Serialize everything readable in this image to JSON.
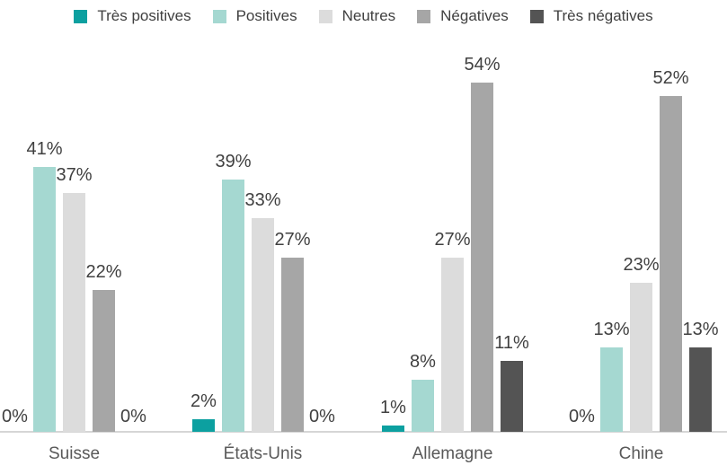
{
  "chart_data": {
    "type": "bar",
    "title": "",
    "xlabel": "",
    "ylabel": "",
    "categories": [
      "Suisse",
      "États-Unis",
      "Allemagne",
      "Chine"
    ],
    "series": [
      {
        "name": "Très positives",
        "color": "#0ca0a0",
        "values": [
          0,
          2,
          1,
          0
        ],
        "labels": [
          "0%",
          "2%",
          "1%",
          "0%"
        ]
      },
      {
        "name": "Positives",
        "color": "#a5d8d1",
        "values": [
          41,
          39,
          8,
          13
        ],
        "labels": [
          "41%",
          "39%",
          "8%",
          "13%"
        ]
      },
      {
        "name": "Neutres",
        "color": "#dcdcdc",
        "values": [
          37,
          33,
          27,
          23
        ],
        "labels": [
          "37%",
          "33%",
          "27%",
          "23%"
        ]
      },
      {
        "name": "Négatives",
        "color": "#a6a6a6",
        "values": [
          22,
          27,
          54,
          52
        ],
        "labels": [
          "22%",
          "27%",
          "54%",
          "52%"
        ]
      },
      {
        "name": "Très négatives",
        "color": "#545454",
        "values": [
          0,
          0,
          11,
          13
        ],
        "labels": [
          "0%",
          "0%",
          "11%",
          "13%"
        ]
      }
    ],
    "value_suffix": "%",
    "ylim": [
      0,
      60
    ],
    "grid": false,
    "legend_position": "top",
    "value_label_color": "#404040",
    "category_label_color": "#595959",
    "axis_line_color": "#d6d6d6"
  }
}
